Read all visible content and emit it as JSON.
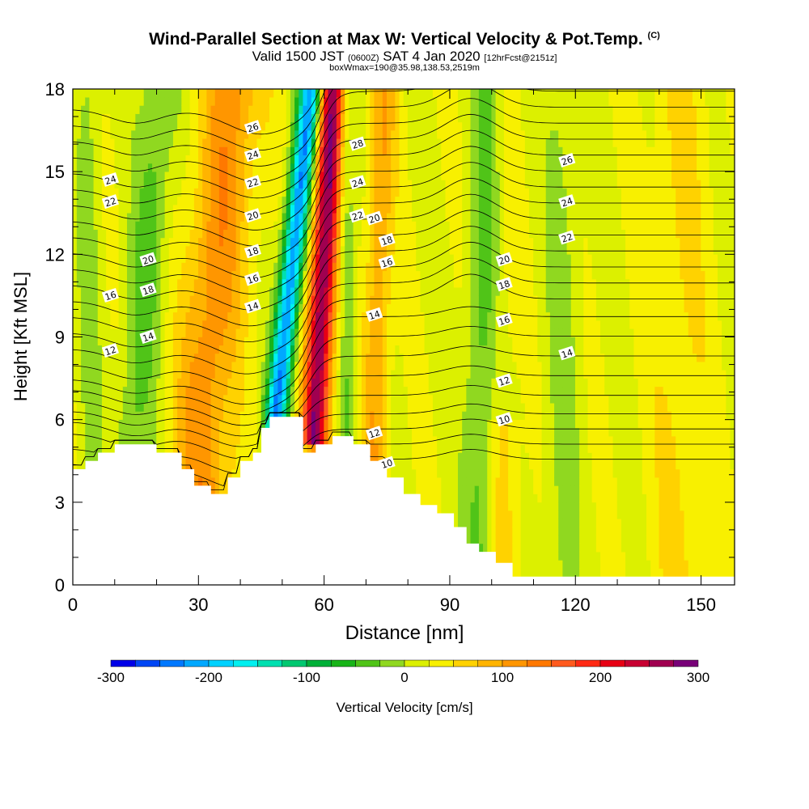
{
  "title": {
    "main": "Wind-Parallel Section at Max W: Vertical Velocity & Pot.Temp.",
    "copyright": "(C)",
    "valid_prefix": "Valid 1500 JST",
    "valid_utc": "(0600Z)",
    "valid_date": "SAT 4 Jan 2020",
    "forecast": "[12hrFcst@2151z]",
    "box_info": "boxWmax=190@35.98,138.53,2519m"
  },
  "chart_data": {
    "type": "heatmap",
    "xlabel": "Distance [nm]",
    "ylabel": "Height [Kft MSL]",
    "xlim": [
      0,
      158
    ],
    "ylim": [
      0,
      18
    ],
    "x_ticks": [
      0,
      30,
      60,
      90,
      120,
      150
    ],
    "y_ticks": [
      0,
      3,
      6,
      9,
      12,
      15,
      18
    ],
    "colorbar": {
      "label": "Vertical Velocity [cm/s]",
      "ticks": [
        -300,
        -200,
        -100,
        0,
        100,
        200,
        300
      ],
      "levels": [
        -300,
        -275,
        -250,
        -225,
        -200,
        -175,
        -150,
        -125,
        -100,
        -75,
        -50,
        -25,
        0,
        25,
        50,
        75,
        100,
        125,
        150,
        175,
        200,
        225,
        250,
        275,
        300
      ],
      "colors": [
        "#0000e8",
        "#0046f5",
        "#0078ff",
        "#00a8ff",
        "#00d2ff",
        "#00f0f0",
        "#00e0b0",
        "#00c870",
        "#00b038",
        "#18b418",
        "#50c418",
        "#90d820",
        "#dcf000",
        "#f8f000",
        "#ffd200",
        "#ffb400",
        "#ff9600",
        "#ff7800",
        "#ff5a1e",
        "#ff2a14",
        "#e80014",
        "#c80032",
        "#a00050",
        "#780078"
      ]
    },
    "terrain_kft": [
      [
        0,
        4.2
      ],
      [
        3,
        4.5
      ],
      [
        6,
        4.8
      ],
      [
        10,
        5.1
      ],
      [
        20,
        4.8
      ],
      [
        26,
        4.2
      ],
      [
        29,
        3.6
      ],
      [
        33,
        3.3
      ],
      [
        37,
        3.9
      ],
      [
        40,
        4.5
      ],
      [
        43,
        4.8
      ],
      [
        45,
        5.7
      ],
      [
        47,
        6.1
      ],
      [
        55,
        4.8
      ],
      [
        58,
        5.1
      ],
      [
        62,
        5.4
      ],
      [
        67,
        5.1
      ],
      [
        71,
        4.5
      ],
      [
        75,
        3.9
      ],
      [
        79,
        3.3
      ],
      [
        83,
        2.9
      ],
      [
        87,
        2.6
      ],
      [
        91,
        2.1
      ],
      [
        94,
        1.5
      ],
      [
        97,
        1.2
      ],
      [
        101,
        0.8
      ],
      [
        105,
        0.3
      ],
      [
        158,
        0.3
      ]
    ],
    "w_features": [
      {
        "x": 48.5,
        "w": -250
      },
      {
        "x": 58,
        "w": 260
      },
      {
        "x": 31,
        "w": 110
      },
      {
        "x": 15,
        "w": -60
      },
      {
        "x": 4,
        "w": -35
      },
      {
        "x": 66,
        "w": -60
      },
      {
        "x": 73,
        "w": 90
      },
      {
        "x": 97,
        "w": -60
      },
      {
        "x": 103,
        "w": 55
      }
    ],
    "theta_label_sets": [
      {
        "x": 9,
        "labels": [
          [
            8.5,
            "12"
          ],
          [
            10.5,
            "16"
          ],
          [
            13.9,
            "22"
          ],
          [
            14.7,
            "24"
          ]
        ]
      },
      {
        "x": 18,
        "labels": [
          [
            9.0,
            "14"
          ],
          [
            10.7,
            "18"
          ],
          [
            11.8,
            "20"
          ]
        ]
      },
      {
        "x": 43,
        "labels": [
          [
            10.1,
            "14"
          ],
          [
            11.1,
            "16"
          ],
          [
            12.1,
            "18"
          ],
          [
            13.4,
            "20"
          ],
          [
            14.6,
            "22"
          ],
          [
            15.6,
            "24"
          ],
          [
            16.6,
            "26"
          ]
        ]
      },
      {
        "x": 68,
        "labels": [
          [
            13.4,
            "22"
          ],
          [
            14.6,
            "24"
          ],
          [
            16.0,
            "28"
          ]
        ]
      },
      {
        "x": 72,
        "labels": [
          [
            5.5,
            "12"
          ],
          [
            9.8,
            "14"
          ],
          [
            13.3,
            "20"
          ]
        ]
      },
      {
        "x": 75,
        "labels": [
          [
            4.4,
            "10"
          ],
          [
            11.7,
            "16"
          ],
          [
            12.5,
            "18"
          ]
        ]
      },
      {
        "x": 103,
        "labels": [
          [
            6.0,
            "10"
          ],
          [
            7.4,
            "12"
          ],
          [
            9.6,
            "16"
          ],
          [
            10.9,
            "18"
          ],
          [
            11.8,
            "20"
          ]
        ]
      },
      {
        "x": 118,
        "labels": [
          [
            8.4,
            "14"
          ],
          [
            12.6,
            "22"
          ],
          [
            13.9,
            "24"
          ],
          [
            15.4,
            "26"
          ]
        ]
      }
    ]
  }
}
